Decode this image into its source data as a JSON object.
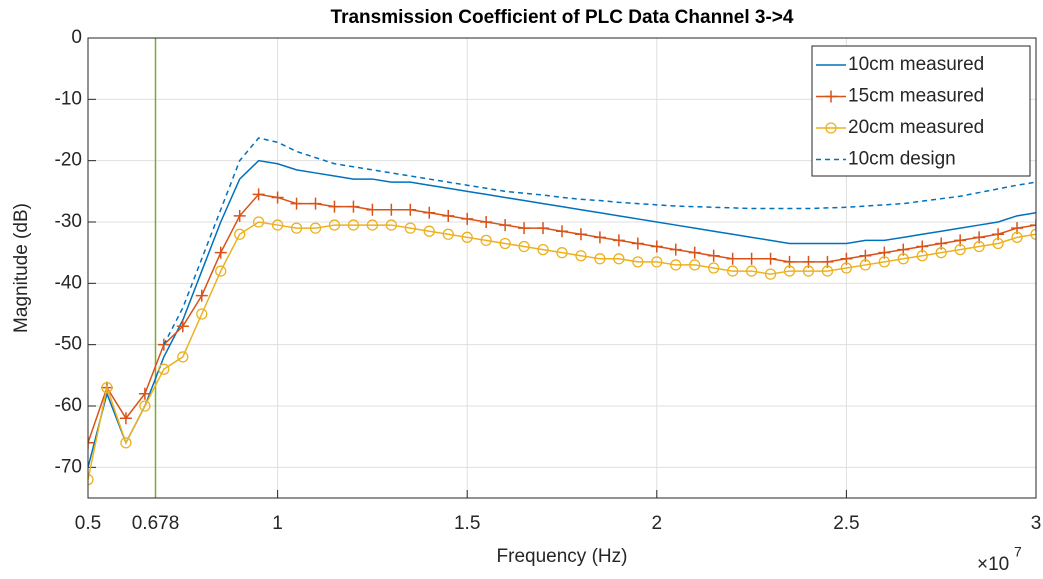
{
  "chart_data": {
    "type": "line",
    "title": "Transmission Coefficient of PLC Data Channel 3->4",
    "x_label": "Frequency (Hz)",
    "y_label": "Magnitude (dB)",
    "x_exponent": {
      "base": "×10",
      "power": "7"
    },
    "xlim": [
      5000000,
      30000000
    ],
    "ylim": [
      -75,
      0
    ],
    "xticks": [
      {
        "value": 5000000,
        "label": "0.5"
      },
      {
        "value": 6780000,
        "label": "0.678"
      },
      {
        "value": 10000000,
        "label": "1"
      },
      {
        "value": 15000000,
        "label": "1.5"
      },
      {
        "value": 20000000,
        "label": "2"
      },
      {
        "value": 25000000,
        "label": "2.5"
      },
      {
        "value": 30000000,
        "label": "3"
      }
    ],
    "yticks": [
      0,
      -10,
      -20,
      -30,
      -40,
      -50,
      -60,
      -70
    ],
    "grid": true,
    "legend": "top-right",
    "vline": {
      "x": 6780000,
      "color": "#77ac30"
    },
    "x": [
      5000000,
      5500000,
      6000000,
      6500000,
      7000000,
      7500000,
      8000000,
      8500000,
      9000000,
      9500000,
      10000000,
      10500000,
      11000000,
      11500000,
      12000000,
      12500000,
      13000000,
      13500000,
      14000000,
      14500000,
      15000000,
      15500000,
      16000000,
      16500000,
      17000000,
      17500000,
      18000000,
      18500000,
      19000000,
      19500000,
      20000000,
      20500000,
      21000000,
      21500000,
      22000000,
      22500000,
      23000000,
      23500000,
      24000000,
      24500000,
      25000000,
      25500000,
      26000000,
      26500000,
      27000000,
      27500000,
      28000000,
      28500000,
      29000000,
      29500000,
      30000000
    ],
    "series": [
      {
        "name": "10cm measured",
        "color": "#0072bd",
        "style": "solid",
        "marker": "none",
        "values": [
          -70,
          -58,
          -66,
          -60,
          -52,
          -46,
          -38,
          -30,
          -23,
          -20,
          -20.5,
          -21.5,
          -22,
          -22.5,
          -23,
          -23,
          -23.5,
          -23.5,
          -24,
          -24.5,
          -25,
          -25.5,
          -26,
          -26.5,
          -27,
          -27.5,
          -28,
          -28.5,
          -29,
          -29.5,
          -30,
          -30.5,
          -31,
          -31.5,
          -32,
          -32.5,
          -33,
          -33.5,
          -33.5,
          -33.5,
          -33.5,
          -33,
          -33,
          -32.5,
          -32,
          -31.5,
          -31,
          -30.5,
          -30,
          -29,
          -28.5
        ]
      },
      {
        "name": "15cm measured",
        "color": "#d95319",
        "style": "solid",
        "marker": "plus",
        "values": [
          -66,
          -57,
          -62,
          -58,
          -50,
          -47,
          -42,
          -35,
          -29,
          -25.5,
          -26,
          -27,
          -27,
          -27.5,
          -27.5,
          -28,
          -28,
          -28,
          -28.5,
          -29,
          -29.5,
          -30,
          -30.5,
          -31,
          -31,
          -31.5,
          -32,
          -32.5,
          -33,
          -33.5,
          -34,
          -34.5,
          -35,
          -35.5,
          -36,
          -36,
          -36,
          -36.5,
          -36.5,
          -36.5,
          -36,
          -35.5,
          -35,
          -34.5,
          -34,
          -33.5,
          -33,
          -32.5,
          -32,
          -31,
          -30.5
        ]
      },
      {
        "name": "20cm measured",
        "color": "#edb120",
        "style": "solid",
        "marker": "circle",
        "values": [
          -72,
          -57,
          -66,
          -60,
          -54,
          -52,
          -45,
          -38,
          -32,
          -30,
          -30.5,
          -31,
          -31,
          -30.5,
          -30.5,
          -30.5,
          -30.5,
          -31,
          -31.5,
          -32,
          -32.5,
          -33,
          -33.5,
          -34,
          -34.5,
          -35,
          -35.5,
          -36,
          -36,
          -36.5,
          -36.5,
          -37,
          -37,
          -37.5,
          -38,
          -38,
          -38.5,
          -38,
          -38,
          -38,
          -37.5,
          -37,
          -36.5,
          -36,
          -35.5,
          -35,
          -34.5,
          -34,
          -33.5,
          -32.5,
          -32
        ]
      },
      {
        "name": "10cm design",
        "color": "#0072bd",
        "style": "dashed",
        "marker": "none",
        "values": [
          null,
          null,
          null,
          null,
          -50,
          -44,
          -36,
          -28,
          -20,
          -16.3,
          -17,
          -18.5,
          -19.5,
          -20.5,
          -21,
          -21.5,
          -22,
          -22.5,
          -23,
          -23.5,
          -24,
          -24.5,
          -25,
          -25.3,
          -25.6,
          -26,
          -26.3,
          -26.5,
          -26.8,
          -27,
          -27.2,
          -27.4,
          -27.5,
          -27.6,
          -27.7,
          -27.8,
          -27.8,
          -27.8,
          -27.8,
          -27.7,
          -27.6,
          -27.4,
          -27.2,
          -27,
          -26.6,
          -26.2,
          -25.8,
          -25.2,
          -24.6,
          -24,
          -23.5
        ]
      }
    ]
  }
}
